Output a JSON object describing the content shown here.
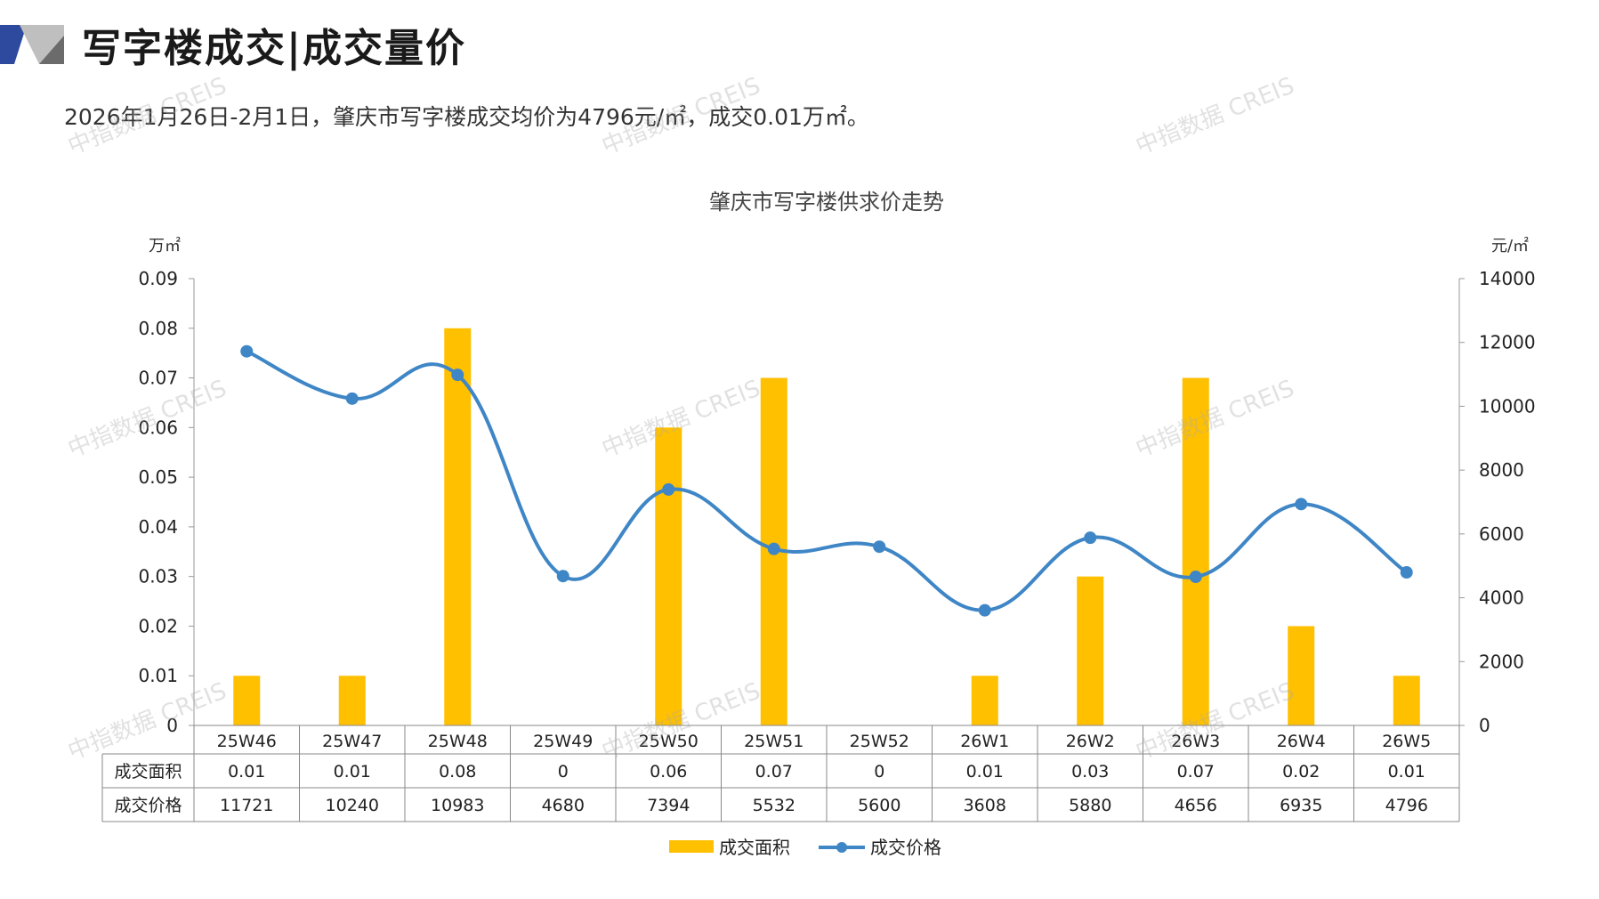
{
  "header": {
    "title": "写字楼成交|成交量价",
    "summary": "2026年1月26日-2月1日，肇庆市写字楼成交均价为4796元/㎡，成交0.01万㎡。"
  },
  "watermark_text": "中指数据 CREIS",
  "colors": {
    "bar": "#FFC000",
    "line": "#3F86C6",
    "logo_blue": "#2E4A9E",
    "logo_gray": "#BFBFBF"
  },
  "chart_data": {
    "type": "bar",
    "title": "肇庆市写字楼供求价走势",
    "categories": [
      "25W46",
      "25W47",
      "25W48",
      "25W49",
      "25W50",
      "25W51",
      "25W52",
      "26W1",
      "26W2",
      "26W3",
      "26W4",
      "26W5"
    ],
    "series": [
      {
        "name": "成交面积",
        "type": "bar",
        "axis": "left",
        "values": [
          0.01,
          0.01,
          0.08,
          0,
          0.06,
          0.07,
          0,
          0.01,
          0.03,
          0.07,
          0.02,
          0.01
        ],
        "labels": [
          "0.01",
          "0.01",
          "0.08",
          "0",
          "0.06",
          "0.07",
          "0",
          "0.01",
          "0.03",
          "0.07",
          "0.02",
          "0.01"
        ]
      },
      {
        "name": "成交价格",
        "type": "line",
        "axis": "right",
        "values": [
          11721,
          10240,
          10983,
          4680,
          7394,
          5532,
          5600,
          3608,
          5880,
          4656,
          6935,
          4796
        ],
        "labels": [
          "11721",
          "10240",
          "10983",
          "4680",
          "7394",
          "5532",
          "5600",
          "3608",
          "5880",
          "4656",
          "6935",
          "4796"
        ]
      }
    ],
    "y_left": {
      "unit": "万㎡",
      "min": 0,
      "max": 0.09,
      "ticks": [
        "0",
        "0.01",
        "0.02",
        "0.03",
        "0.04",
        "0.05",
        "0.06",
        "0.07",
        "0.08",
        "0.09"
      ]
    },
    "y_right": {
      "unit": "元/㎡",
      "min": 0,
      "max": 14000,
      "ticks": [
        "0",
        "2000",
        "4000",
        "6000",
        "8000",
        "10000",
        "12000",
        "14000"
      ]
    },
    "data_table": true,
    "legend": "bottom",
    "grid": false
  }
}
